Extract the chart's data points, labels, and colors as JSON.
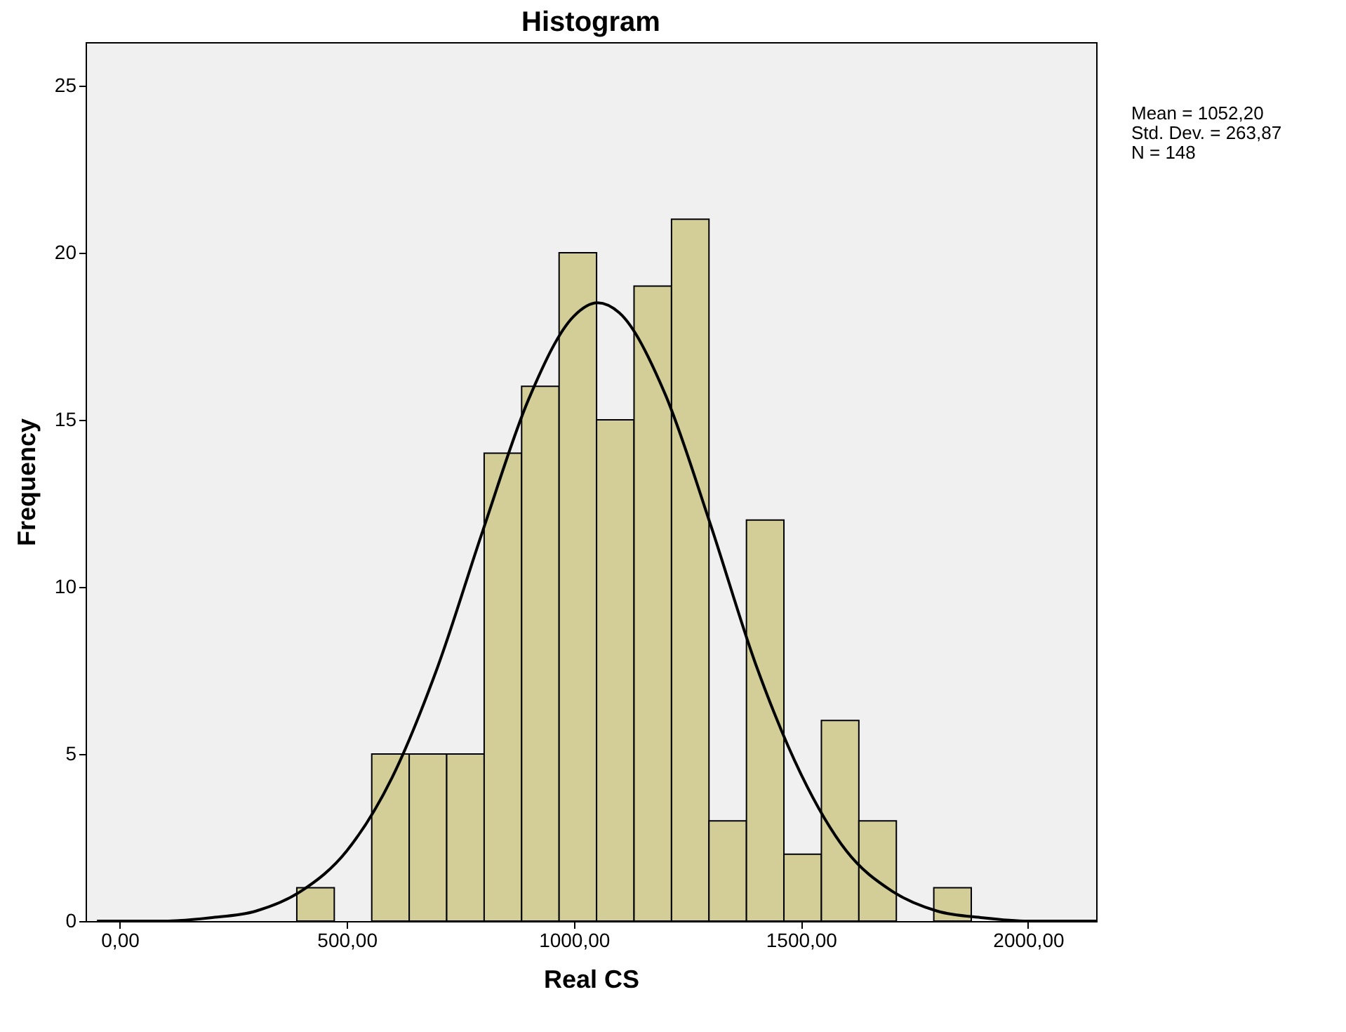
{
  "chart_data": {
    "type": "histogram",
    "title": "Histogram",
    "xlabel": "Real CS",
    "ylabel": "Frequency",
    "annotations": [
      "Mean = 1052,20",
      "Std. Dev. = 263,87",
      "N = 148"
    ],
    "bins": [
      390,
      472.5,
      555,
      637.5,
      720,
      802.5,
      885,
      967.5,
      1050,
      1132.5,
      1215,
      1297.5,
      1380,
      1462.5,
      1545,
      1627.5,
      1710,
      1792.5,
      1875
    ],
    "values": [
      1,
      0,
      5,
      5,
      5,
      14,
      16,
      20,
      15,
      19,
      21,
      3,
      12,
      2,
      6,
      3,
      0,
      1
    ],
    "color": "#d3ce97",
    "series": [
      {
        "type": "line",
        "color": "#000000",
        "x": [
          -50,
          0,
          100,
          200,
          300,
          400,
          500,
          600,
          700,
          800,
          900,
          1000,
          1052,
          1100,
          1200,
          1300,
          1400,
          1500,
          1600,
          1700,
          1800,
          1900,
          2000,
          2100,
          2150
        ],
        "values": [
          0,
          0,
          0,
          0.1,
          0.3,
          0.9,
          2.1,
          4.3,
          7.6,
          11.7,
          15.6,
          18.1,
          18.5,
          18.2,
          15.8,
          11.9,
          7.7,
          4.4,
          2.1,
          0.9,
          0.3,
          0.1,
          0,
          0,
          0
        ]
      }
    ],
    "xlim": [
      -75,
      2150
    ],
    "xticks": [
      {
        "value": 0,
        "label": "0,00"
      },
      {
        "value": 500,
        "label": "500,00"
      },
      {
        "value": 1000,
        "label": "1000,00"
      },
      {
        "value": 1500,
        "label": "1500,00"
      },
      {
        "value": 2000,
        "label": "2000,00"
      }
    ],
    "ylim": [
      0,
      26.3
    ],
    "yticks": [
      0,
      5,
      10,
      15,
      20,
      25
    ]
  }
}
